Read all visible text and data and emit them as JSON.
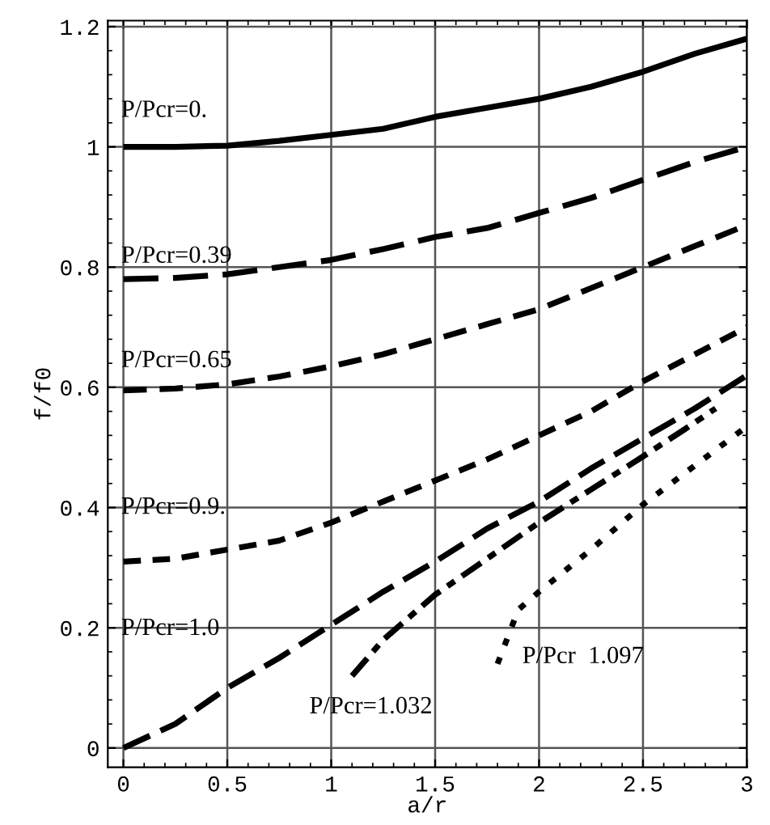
{
  "chart_data": {
    "type": "line",
    "xlabel": "a/r",
    "ylabel": "f/f0",
    "xlim": [
      -0.075,
      3.0
    ],
    "ylim": [
      -0.032,
      1.21
    ],
    "xticks": [
      0,
      0.5,
      1,
      1.5,
      2,
      2.5,
      3
    ],
    "yticks": [
      0,
      0.2,
      0.4,
      0.6,
      0.8,
      1,
      1.2
    ],
    "grid": true,
    "series": [
      {
        "name": "P/Pcr=0.",
        "color": "#000000",
        "line_style": "solid",
        "x": [
          0,
          0.25,
          0.5,
          0.75,
          1,
          1.25,
          1.5,
          1.75,
          2,
          2.25,
          2.5,
          2.75,
          3
        ],
        "values": [
          1.0,
          1.0,
          1.002,
          1.01,
          1.02,
          1.03,
          1.05,
          1.065,
          1.08,
          1.1,
          1.125,
          1.155,
          1.18
        ]
      },
      {
        "name": "P/Pcr=0.39",
        "color": "#000000",
        "line_style": "dashed",
        "x": [
          0,
          0.25,
          0.5,
          0.75,
          1,
          1.25,
          1.5,
          1.75,
          2,
          2.25,
          2.5,
          2.75,
          3
        ],
        "values": [
          0.78,
          0.782,
          0.788,
          0.8,
          0.812,
          0.83,
          0.85,
          0.865,
          0.89,
          0.915,
          0.945,
          0.975,
          1.0
        ]
      },
      {
        "name": "P/Pcr=0.65",
        "color": "#000000",
        "line_style": "dashed",
        "x": [
          0,
          0.25,
          0.5,
          0.75,
          1,
          1.25,
          1.5,
          1.75,
          2,
          2.25,
          2.5,
          2.75,
          3
        ],
        "values": [
          0.595,
          0.598,
          0.605,
          0.618,
          0.635,
          0.655,
          0.68,
          0.705,
          0.73,
          0.765,
          0.8,
          0.835,
          0.87
        ]
      },
      {
        "name": "P/Pcr=0.9.",
        "color": "#000000",
        "line_style": "dashed",
        "x": [
          0,
          0.25,
          0.5,
          0.75,
          1,
          1.25,
          1.5,
          1.75,
          2,
          2.25,
          2.5,
          2.75,
          3
        ],
        "values": [
          0.31,
          0.315,
          0.33,
          0.345,
          0.375,
          0.41,
          0.445,
          0.48,
          0.52,
          0.56,
          0.61,
          0.655,
          0.7
        ]
      },
      {
        "name": "P/Pcr=1.0",
        "color": "#000000",
        "line_style": "dashed",
        "x": [
          0,
          0.25,
          0.5,
          0.75,
          1,
          1.25,
          1.5,
          1.75,
          2,
          2.25,
          2.5,
          2.75,
          3
        ],
        "values": [
          0.0,
          0.04,
          0.1,
          0.15,
          0.205,
          0.26,
          0.31,
          0.365,
          0.41,
          0.465,
          0.515,
          0.565,
          0.62
        ]
      },
      {
        "name": "P/Pcr=1.032",
        "color": "#000000",
        "line_style": "dashed",
        "x": [
          1.1,
          1.25,
          1.5,
          1.75,
          2,
          2.25,
          2.5,
          2.7,
          2.85
        ],
        "values": [
          0.12,
          0.18,
          0.255,
          0.315,
          0.375,
          0.43,
          0.485,
          0.53,
          0.565
        ]
      },
      {
        "name": "P/Pcr  1.097",
        "color": "#000000",
        "line_style": "dotted",
        "x": [
          1.8,
          1.85,
          1.9,
          2,
          2.25,
          2.5,
          2.75,
          3
        ],
        "values": [
          0.14,
          0.185,
          0.23,
          0.26,
          0.33,
          0.405,
          0.47,
          0.535
        ]
      }
    ]
  }
}
